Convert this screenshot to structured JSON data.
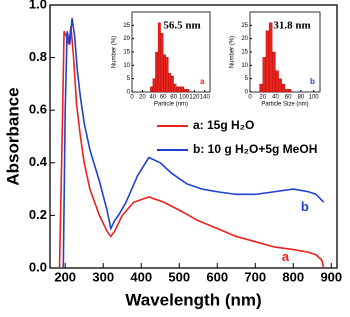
{
  "chart_data": [
    {
      "type": "line",
      "x_label": "Wavelength (nm)",
      "y_label": "Absorbance",
      "xlim": [
        160,
        915
      ],
      "xticks": [
        200,
        300,
        400,
        500,
        600,
        700,
        800,
        900
      ],
      "ylim": [
        0,
        1
      ],
      "yticks": [
        {
          "value": 0,
          "label": "0.0"
        },
        0.2,
        0.4,
        0.6,
        0.8,
        {
          "value": 1,
          "label": "1.0"
        }
      ],
      "series": [
        {
          "name": "a: 15g H₂O",
          "tag": "a",
          "color": "#e8231e",
          "x": [
            185,
            192,
            197,
            203,
            210,
            215,
            222,
            230,
            240,
            250,
            265,
            290,
            310,
            320,
            330,
            350,
            380,
            420,
            460,
            500,
            550,
            600,
            650,
            700,
            750,
            800,
            840,
            860,
            875,
            880
          ],
          "values": [
            0,
            0.5,
            0.9,
            0.88,
            0.85,
            0.92,
            0.8,
            0.62,
            0.5,
            0.4,
            0.3,
            0.2,
            0.14,
            0.12,
            0.14,
            0.2,
            0.25,
            0.27,
            0.25,
            0.22,
            0.18,
            0.15,
            0.12,
            0.1,
            0.08,
            0.07,
            0.06,
            0.05,
            0.03,
            0
          ]
        },
        {
          "name": "b: 10 g H₂O+5g MeOH",
          "tag": "b",
          "color": "#2040d0",
          "x": [
            195,
            200,
            205,
            212,
            218,
            225,
            232,
            240,
            250,
            265,
            290,
            310,
            320,
            330,
            340,
            360,
            390,
            420,
            450,
            480,
            520,
            560,
            600,
            650,
            700,
            750,
            800,
            840,
            860,
            880
          ],
          "values": [
            0,
            0.6,
            0.9,
            0.85,
            0.95,
            0.88,
            0.75,
            0.65,
            0.55,
            0.45,
            0.33,
            0.22,
            0.15,
            0.18,
            0.2,
            0.25,
            0.35,
            0.42,
            0.4,
            0.36,
            0.32,
            0.3,
            0.29,
            0.28,
            0.28,
            0.29,
            0.3,
            0.29,
            0.28,
            0.25
          ]
        }
      ]
    },
    {
      "type": "histogram",
      "annotation": "56.5 nm",
      "tag": "a",
      "tag_color": "#e8231e",
      "color": "#e8231e",
      "x_label": "Particle (nm)",
      "y_label": "Number (%)",
      "xlim": [
        0,
        150
      ],
      "xticks": [
        0,
        20,
        40,
        60,
        80,
        100,
        120,
        140
      ],
      "ylim": [
        0,
        30
      ],
      "yticks": [
        0,
        5,
        10,
        15,
        20,
        25
      ],
      "bins": [
        35,
        40,
        45,
        50,
        55,
        60,
        65,
        70,
        75,
        80,
        85,
        90,
        95,
        100,
        105,
        110
      ],
      "values": [
        2,
        5,
        15,
        26,
        22,
        14,
        13,
        7,
        6,
        3,
        2,
        2,
        2,
        1,
        1
      ]
    },
    {
      "type": "histogram",
      "annotation": "31.8 nm",
      "tag": "b",
      "tag_color": "#2040d0",
      "color": "#e8231e",
      "x_label": "Particle Size (nm)",
      "y_label": "Number (%)",
      "xlim": [
        0,
        110
      ],
      "xticks": [
        0,
        20,
        40,
        60,
        80,
        100
      ],
      "ylim": [
        0,
        30
      ],
      "yticks": [
        0,
        5,
        10,
        15,
        20,
        25
      ],
      "bins": [
        15,
        20,
        25,
        30,
        35,
        40,
        45,
        50,
        55,
        60,
        65
      ],
      "values": [
        3,
        13,
        23,
        26,
        15,
        8,
        5,
        3,
        1,
        1
      ]
    }
  ]
}
